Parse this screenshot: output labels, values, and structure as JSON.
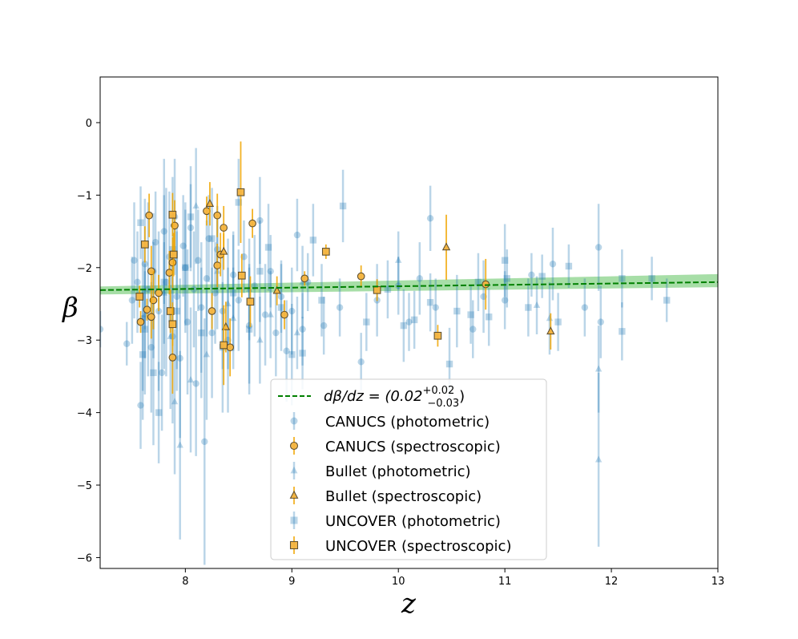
{
  "chart_data": {
    "type": "scatter",
    "xlabel": "z",
    "ylabel": "β",
    "xlim": [
      7.2,
      13.0
    ],
    "ylim": [
      -6.15,
      0.63
    ],
    "x_ticks": [
      8,
      9,
      10,
      11,
      12,
      13
    ],
    "y_ticks": [
      0,
      -1,
      -2,
      -3,
      -4,
      -5,
      -6
    ],
    "x_tick_labels": [
      "8",
      "9",
      "10",
      "11",
      "12",
      "13"
    ],
    "y_tick_labels": [
      "0",
      "−1",
      "−2",
      "−3",
      "−4",
      "−5",
      "−6"
    ],
    "fit": {
      "label_prefix": "dβ/dz = (0.02",
      "sup": "+0.02",
      "sub": "−0.03",
      "label_suffix": ")",
      "slope": 0.02,
      "line": [
        [
          7.2,
          -2.31
        ],
        [
          13.0,
          -2.2
        ]
      ],
      "band_upper": [
        [
          7.2,
          -2.26
        ],
        [
          13.0,
          -2.09
        ]
      ],
      "band_lower": [
        [
          7.2,
          -2.37
        ],
        [
          13.0,
          -2.27
        ]
      ],
      "color": "#008000",
      "band_color": "#6cc86c"
    },
    "legend_position": "lower center",
    "colors": {
      "photometric": "#1f77b4",
      "spectroscopic_fill": "#f5b540",
      "spectroscopic_edge": "#5a4a2a",
      "spectroscopic_err": "#f0a500"
    },
    "series": [
      {
        "name": "CANUCS (photometric)",
        "marker": "circle",
        "kind": "photometric",
        "points": [
          [
            7.2,
            -2.85,
            0.25
          ],
          [
            7.45,
            -3.05,
            0.3
          ],
          [
            7.5,
            -2.45,
            0.6
          ],
          [
            7.52,
            -1.9,
            0.8
          ],
          [
            7.55,
            -2.2,
            0.7
          ],
          [
            7.58,
            -3.9,
            0.6
          ],
          [
            7.6,
            -2.7,
            1.0
          ],
          [
            7.62,
            -1.95,
            0.9
          ],
          [
            7.65,
            -2.3,
            1.2
          ],
          [
            7.68,
            -3.1,
            0.9
          ],
          [
            7.7,
            -2.05,
            0.8
          ],
          [
            7.72,
            -1.65,
            0.7
          ],
          [
            7.75,
            -2.6,
            1.1
          ],
          [
            7.78,
            -3.45,
            0.8
          ],
          [
            7.8,
            -1.5,
            1.0
          ],
          [
            7.82,
            -2.2,
            1.3
          ],
          [
            7.85,
            -1.85,
            0.9
          ],
          [
            7.88,
            -2.95,
            1.2
          ],
          [
            7.9,
            -1.3,
            0.8
          ],
          [
            7.92,
            -2.4,
            1.0
          ],
          [
            7.95,
            -3.25,
            1.1
          ],
          [
            7.98,
            -1.7,
            0.7
          ],
          [
            8.0,
            -2.0,
            0.9
          ],
          [
            8.02,
            -2.75,
            1.0
          ],
          [
            8.05,
            -1.45,
            0.6
          ],
          [
            8.08,
            -2.3,
            0.8
          ],
          [
            8.1,
            -3.6,
            1.0
          ],
          [
            8.12,
            -1.9,
            0.7
          ],
          [
            8.15,
            -2.55,
            0.9
          ],
          [
            8.18,
            -4.4,
            1.7
          ],
          [
            8.2,
            -2.15,
            0.8
          ],
          [
            8.22,
            -1.6,
            0.6
          ],
          [
            8.25,
            -2.9,
            0.9
          ],
          [
            8.28,
            -2.35,
            0.7
          ],
          [
            8.3,
            -1.75,
            0.6
          ],
          [
            8.35,
            -2.6,
            0.8
          ],
          [
            8.4,
            -3.0,
            1.0
          ],
          [
            8.45,
            -2.1,
            0.6
          ],
          [
            8.5,
            -2.45,
            0.7
          ],
          [
            8.55,
            -1.85,
            0.5
          ],
          [
            8.6,
            -2.8,
            0.8
          ],
          [
            8.65,
            -2.25,
            0.7
          ],
          [
            8.7,
            -1.35,
            0.6
          ],
          [
            8.75,
            -2.65,
            0.7
          ],
          [
            8.8,
            -2.05,
            0.5
          ],
          [
            8.85,
            -2.9,
            0.6
          ],
          [
            8.9,
            -2.4,
            0.5
          ],
          [
            8.95,
            -3.15,
            0.7
          ],
          [
            9.0,
            -2.6,
            0.6
          ],
          [
            9.05,
            -1.55,
            0.5
          ],
          [
            9.1,
            -2.85,
            0.5
          ],
          [
            9.15,
            -2.2,
            0.4
          ],
          [
            9.3,
            -2.8,
            0.4
          ],
          [
            9.45,
            -2.55,
            0.4
          ],
          [
            9.65,
            -3.3,
            0.4
          ],
          [
            9.8,
            -2.45,
            0.5
          ],
          [
            10.0,
            -2.25,
            0.4
          ],
          [
            10.1,
            -2.75,
            0.4
          ],
          [
            10.2,
            -2.15,
            0.5
          ],
          [
            10.3,
            -1.32,
            0.45
          ],
          [
            10.35,
            -2.55,
            0.4
          ],
          [
            10.7,
            -2.85,
            0.4
          ],
          [
            10.8,
            -2.4,
            0.5
          ],
          [
            11.0,
            -2.45,
            0.4
          ],
          [
            11.25,
            -2.1,
            0.3
          ],
          [
            11.45,
            -1.95,
            0.5
          ],
          [
            11.75,
            -2.55,
            0.4
          ],
          [
            11.88,
            -1.72,
            0.6
          ],
          [
            11.9,
            -2.75,
            0.5
          ]
        ]
      },
      {
        "name": "CANUCS (spectroscopic)",
        "marker": "circle",
        "kind": "spectroscopic",
        "points": [
          [
            7.58,
            -2.75,
            0.15
          ],
          [
            7.64,
            -2.58,
            0.15
          ],
          [
            7.66,
            -1.28,
            0.3
          ],
          [
            7.68,
            -2.05,
            0.35
          ],
          [
            7.7,
            -2.45,
            0.4
          ],
          [
            7.68,
            -2.68,
            0.3
          ],
          [
            7.75,
            -2.35,
            0.25
          ],
          [
            7.85,
            -2.07,
            0.3
          ],
          [
            7.88,
            -1.93,
            0.35
          ],
          [
            7.88,
            -3.24,
            0.5
          ],
          [
            7.9,
            -1.42,
            0.35
          ],
          [
            8.2,
            -1.22,
            0.2
          ],
          [
            8.25,
            -2.6,
            0.25
          ],
          [
            8.3,
            -1.28,
            0.3
          ],
          [
            8.3,
            -1.97,
            0.3
          ],
          [
            8.33,
            -1.82,
            0.3
          ],
          [
            8.36,
            -1.45,
            0.3
          ],
          [
            8.42,
            -3.1,
            0.4
          ],
          [
            8.63,
            -1.39,
            0.2
          ],
          [
            8.93,
            -2.65,
            0.2
          ],
          [
            9.12,
            -2.15,
            0.1
          ],
          [
            9.65,
            -2.12,
            0.15
          ],
          [
            10.82,
            -2.23,
            0.35
          ]
        ]
      },
      {
        "name": "Bullet (photometric)",
        "marker": "triangle",
        "kind": "photometric",
        "points": [
          [
            7.62,
            -2.65,
            0.6
          ],
          [
            7.7,
            -2.45,
            0.8
          ],
          [
            7.8,
            -2.35,
            0.7
          ],
          [
            7.86,
            -2.95,
            1.0
          ],
          [
            7.9,
            -3.85,
            1.0
          ],
          [
            7.95,
            -4.45,
            1.3
          ],
          [
            8.05,
            -3.55,
            1.0
          ],
          [
            8.1,
            -1.15,
            0.8
          ],
          [
            8.2,
            -3.2,
            0.9
          ],
          [
            8.3,
            -2.05,
            0.8
          ],
          [
            8.4,
            -2.5,
            0.9
          ],
          [
            8.45,
            -2.7,
            0.7
          ],
          [
            8.6,
            -2.3,
            0.7
          ],
          [
            8.7,
            -3.0,
            0.6
          ],
          [
            8.8,
            -2.65,
            0.6
          ],
          [
            9.05,
            -2.9,
            0.5
          ],
          [
            9.1,
            -2.2,
            0.5
          ],
          [
            10.0,
            -1.9,
            0.4
          ],
          [
            11.3,
            -2.52,
            0.4
          ],
          [
            11.42,
            -2.7,
            0.5
          ],
          [
            11.88,
            -3.4,
            0.6
          ],
          [
            11.88,
            -4.65,
            1.2
          ]
        ]
      },
      {
        "name": "Bullet (spectroscopic)",
        "marker": "triangle",
        "kind": "spectroscopic",
        "points": [
          [
            8.23,
            -1.12,
            0.3
          ],
          [
            8.38,
            -2.82,
            0.35
          ],
          [
            8.36,
            -1.78,
            0.25
          ],
          [
            8.86,
            -2.32,
            0.2
          ],
          [
            10.45,
            -1.72,
            0.45
          ],
          [
            11.43,
            -2.88,
            0.25
          ]
        ]
      },
      {
        "name": "UNCOVER (photometric)",
        "marker": "square",
        "kind": "photometric",
        "points": [
          [
            7.58,
            -1.38,
            0.5
          ],
          [
            7.6,
            -3.2,
            0.9
          ],
          [
            7.62,
            -2.85,
            0.9
          ],
          [
            7.7,
            -3.45,
            1.0
          ],
          [
            7.75,
            -4.0,
            0.7
          ],
          [
            7.8,
            -2.2,
            1.2
          ],
          [
            7.88,
            -1.75,
            1.0
          ],
          [
            7.92,
            -2.6,
            1.1
          ],
          [
            8.0,
            -2.0,
            0.8
          ],
          [
            8.05,
            -1.3,
            0.7
          ],
          [
            8.15,
            -2.9,
            0.9
          ],
          [
            8.25,
            -1.6,
            0.7
          ],
          [
            8.35,
            -3.1,
            0.9
          ],
          [
            8.45,
            -2.35,
            0.8
          ],
          [
            8.5,
            -1.1,
            0.6
          ],
          [
            8.6,
            -2.85,
            0.9
          ],
          [
            8.7,
            -2.05,
            0.7
          ],
          [
            8.78,
            -1.72,
            0.6
          ],
          [
            8.9,
            -2.55,
            0.6
          ],
          [
            9.0,
            -3.2,
            0.7
          ],
          [
            9.1,
            -3.18,
            0.5
          ],
          [
            9.2,
            -1.62,
            0.5
          ],
          [
            9.28,
            -2.45,
            0.5
          ],
          [
            9.48,
            -1.15,
            0.5
          ],
          [
            9.7,
            -2.75,
            0.4
          ],
          [
            9.9,
            -2.3,
            0.4
          ],
          [
            10.05,
            -2.8,
            0.5
          ],
          [
            10.15,
            -2.72,
            0.4
          ],
          [
            10.3,
            -2.48,
            0.4
          ],
          [
            10.48,
            -3.33,
            0.5
          ],
          [
            10.55,
            -2.6,
            0.5
          ],
          [
            10.68,
            -2.65,
            0.4
          ],
          [
            10.75,
            -2.2,
            0.4
          ],
          [
            10.85,
            -2.68,
            0.4
          ],
          [
            11.0,
            -1.9,
            0.5
          ],
          [
            11.02,
            -2.15,
            0.4
          ],
          [
            11.22,
            -2.55,
            0.4
          ],
          [
            11.35,
            -2.12,
            0.3
          ],
          [
            11.5,
            -2.75,
            0.4
          ],
          [
            11.6,
            -1.98,
            0.3
          ],
          [
            12.1,
            -2.15,
            0.4
          ],
          [
            12.1,
            -2.88,
            0.4
          ],
          [
            12.38,
            -2.15,
            0.3
          ],
          [
            12.52,
            -2.45,
            0.3
          ]
        ]
      },
      {
        "name": "UNCOVER (spectroscopic)",
        "marker": "square",
        "kind": "spectroscopic",
        "points": [
          [
            7.57,
            -2.4,
            0.15
          ],
          [
            7.62,
            -1.68,
            0.25
          ],
          [
            7.86,
            -2.6,
            0.3
          ],
          [
            7.88,
            -1.27,
            0.3
          ],
          [
            7.89,
            -1.82,
            0.3
          ],
          [
            7.88,
            -2.78,
            0.3
          ],
          [
            8.36,
            -3.07,
            0.55
          ],
          [
            8.52,
            -0.96,
            0.7
          ],
          [
            8.53,
            -2.11,
            0.3
          ],
          [
            8.61,
            -2.47,
            0.35
          ],
          [
            9.32,
            -1.78,
            0.1
          ],
          [
            9.8,
            -2.31,
            0.15
          ],
          [
            10.37,
            -2.94,
            0.15
          ]
        ]
      }
    ]
  }
}
